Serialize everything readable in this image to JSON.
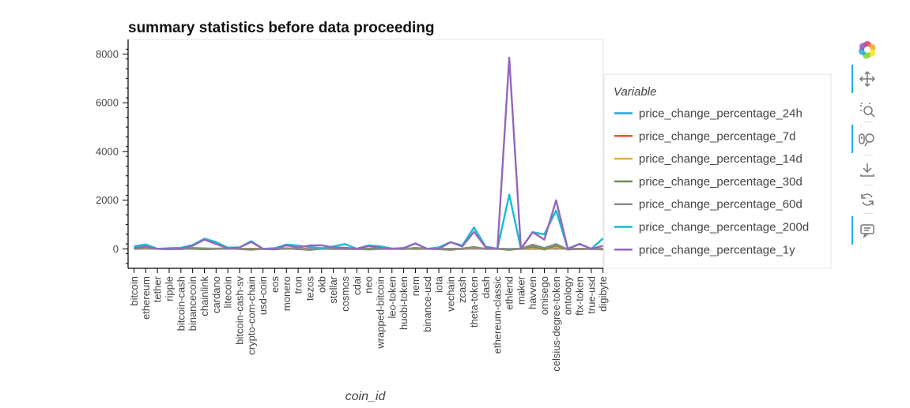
{
  "chart_data": {
    "type": "line",
    "title": "summary statistics before data proceeding",
    "xlabel": "coin_id",
    "ylabel": "",
    "ylim": [
      -800,
      8600
    ],
    "yticks": [
      0,
      2000,
      4000,
      6000,
      8000
    ],
    "grid": false,
    "legend": {
      "title": "Variable",
      "placement": "right"
    },
    "categories": [
      "bitcoin",
      "ethereum",
      "tether",
      "ripple",
      "bitcoin-cash",
      "binancecoin",
      "chainlink",
      "cardano",
      "litecoin",
      "bitcoin-cash-sv",
      "crypto-com-chain",
      "usd-coin",
      "eos",
      "monero",
      "tron",
      "tezos",
      "okb",
      "stellar",
      "cosmos",
      "cdai",
      "neo",
      "wrapped-bitcoin",
      "leo-token",
      "huobi-token",
      "nem",
      "binance-usd",
      "iota",
      "vechain",
      "zcash",
      "theta-token",
      "dash",
      "ethereum-classic",
      "ethlend",
      "maker",
      "havven",
      "omisego",
      "celsius-degree-token",
      "ontology",
      "ftx-token",
      "true-usd",
      "digibyte"
    ],
    "series": [
      {
        "name": "price_change_percentage_24h",
        "color": "#30a2da",
        "values": [
          1,
          3,
          0,
          -1,
          2,
          2,
          -1,
          0,
          0,
          3,
          2,
          0,
          0,
          2,
          0,
          0,
          2,
          -1,
          1,
          -1,
          0,
          1,
          0,
          0,
          1,
          0,
          1,
          -2,
          2,
          6,
          1,
          0,
          -1,
          -1,
          2,
          3,
          8,
          0,
          -1,
          0,
          -2
        ]
      },
      {
        "name": "price_change_percentage_7d",
        "color": "#fc4f30",
        "values": [
          8,
          12,
          0,
          -1,
          15,
          11,
          -1,
          10,
          9,
          4,
          5,
          0,
          4,
          10,
          3,
          -8,
          2,
          5,
          15,
          -1,
          6,
          8,
          4,
          2,
          4,
          0,
          -2,
          -3,
          6,
          18,
          10,
          0,
          -11,
          5,
          27,
          -10,
          44,
          -2,
          3,
          0,
          -6
        ]
      },
      {
        "name": "price_change_percentage_14d",
        "color": "#e5ae38",
        "values": [
          6,
          8,
          0,
          8,
          9,
          16,
          -17,
          4,
          6,
          -2,
          -5,
          0,
          -3,
          5,
          0,
          -11,
          -4,
          6,
          -5,
          0,
          8,
          6,
          -2,
          9,
          -11,
          0,
          11,
          -9,
          -5,
          30,
          2,
          5,
          -27,
          6,
          39,
          -21,
          64,
          -1,
          -13,
          0,
          -14
        ]
      },
      {
        "name": "price_change_percentage_30d",
        "color": "#6d904f",
        "values": [
          8,
          35,
          0,
          -5,
          11,
          2,
          -16,
          -4,
          9,
          -4,
          -16,
          0,
          -21,
          13,
          -11,
          -44,
          5,
          4,
          -7,
          -1,
          1,
          9,
          5,
          -8,
          10,
          0,
          -11,
          -46,
          12,
          71,
          -3,
          5,
          -44,
          6,
          88,
          -21,
          132,
          -24,
          -4,
          0,
          -16
        ]
      },
      {
        "name": "price_change_percentage_60d",
        "color": "#8b8b8b",
        "values": [
          -5,
          32,
          0,
          11,
          -13,
          35,
          20,
          4,
          8,
          -7,
          -43,
          0,
          -15,
          24,
          -14,
          -14,
          3,
          -5,
          1,
          -1,
          -28,
          -5,
          1,
          -9,
          40,
          0,
          6,
          -2,
          -6,
          48,
          -10,
          1,
          -12,
          11,
          174,
          34,
          196,
          -25,
          -6,
          0,
          -27
        ]
      },
      {
        "name": "price_change_percentage_200d",
        "color": "#17becf",
        "values": [
          105,
          180,
          1,
          28,
          45,
          155,
          420,
          280,
          50,
          60,
          315,
          0,
          28,
          175,
          133,
          75,
          27,
          102,
          195,
          0,
          143,
          104,
          15,
          23,
          220,
          1,
          60,
          274,
          135,
          880,
          87,
          5,
          2227,
          7,
          680,
          598,
          1572,
          7,
          205,
          2,
          430
        ]
      },
      {
        "name": "price_change_percentage_1y",
        "color": "#9467bd",
        "values": [
          37,
          101,
          0,
          -17,
          1,
          127,
          380,
          200,
          20,
          56,
          281,
          0,
          -13,
          143,
          50,
          140,
          146,
          60,
          45,
          5,
          115,
          40,
          0,
          35,
          220,
          0,
          0,
          276,
          100,
          700,
          57,
          5,
          7852,
          0,
          688,
          380,
          1995,
          -7,
          196,
          1,
          120
        ]
      }
    ]
  },
  "toolbar": {
    "tools": [
      {
        "name": "bokeh-logo-icon"
      },
      {
        "name": "pan-icon"
      },
      {
        "name": "box-zoom-icon"
      },
      {
        "name": "wheel-zoom-icon"
      },
      {
        "name": "save-icon"
      },
      {
        "name": "reset-icon"
      },
      {
        "name": "hover-icon"
      }
    ]
  }
}
